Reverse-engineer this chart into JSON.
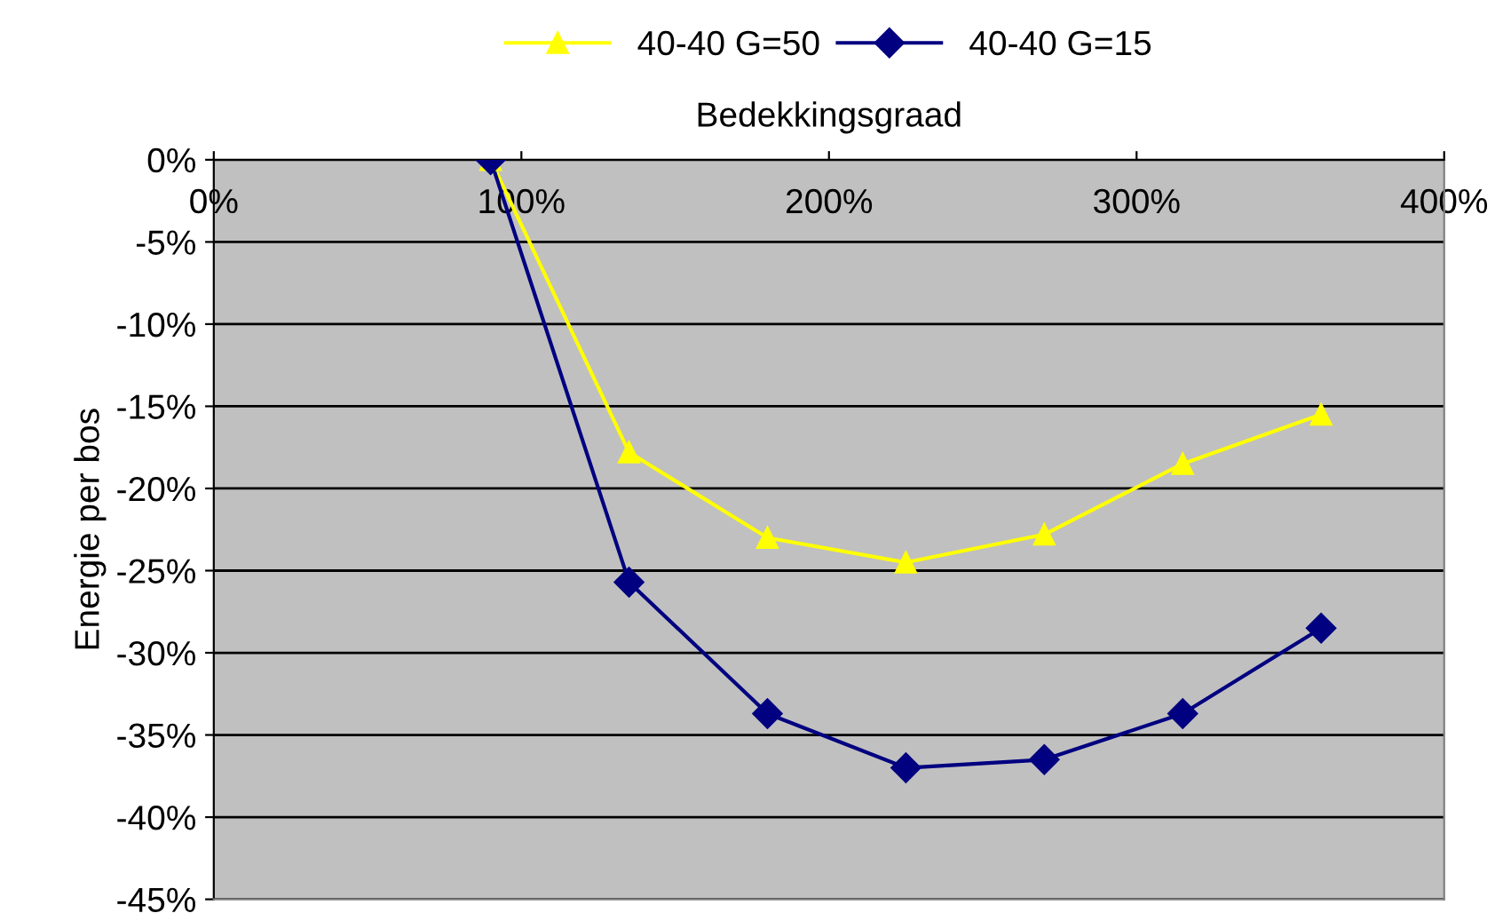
{
  "chart_data": {
    "type": "line",
    "xlabel": "Bedekkingsgraad",
    "ylabel": "Energie per bos",
    "x": [
      90,
      135,
      180,
      225,
      270,
      315,
      360
    ],
    "series": [
      {
        "name": "40-40 G=50",
        "color": "#ffff00",
        "marker": "triangle",
        "values": [
          0,
          -17.8,
          -23,
          -24.5,
          -22.8,
          -18.5,
          -15.5
        ]
      },
      {
        "name": "40-40 G=15",
        "color": "#000080",
        "marker": "diamond",
        "values": [
          0,
          -25.7,
          -33.7,
          -37,
          -36.5,
          -33.7,
          -28.5
        ]
      }
    ],
    "xlim": [
      0,
      400
    ],
    "xticks": [
      {
        "value": 0,
        "label": "0%"
      },
      {
        "value": 100,
        "label": "100%"
      },
      {
        "value": 200,
        "label": "200%"
      },
      {
        "value": 300,
        "label": "300%"
      },
      {
        "value": 400,
        "label": "400%"
      }
    ],
    "ylim": [
      -45,
      0
    ],
    "yticks": [
      {
        "value": 0,
        "label": "0%"
      },
      {
        "value": -5,
        "label": "-5%"
      },
      {
        "value": -10,
        "label": "-10%"
      },
      {
        "value": -15,
        "label": "-15%"
      },
      {
        "value": -20,
        "label": "-20%"
      },
      {
        "value": -25,
        "label": "-25%"
      },
      {
        "value": -30,
        "label": "-30%"
      },
      {
        "value": -35,
        "label": "-35%"
      },
      {
        "value": -40,
        "label": "-40%"
      },
      {
        "value": -45,
        "label": "-45%"
      }
    ],
    "grid": "y",
    "legend": "top"
  }
}
